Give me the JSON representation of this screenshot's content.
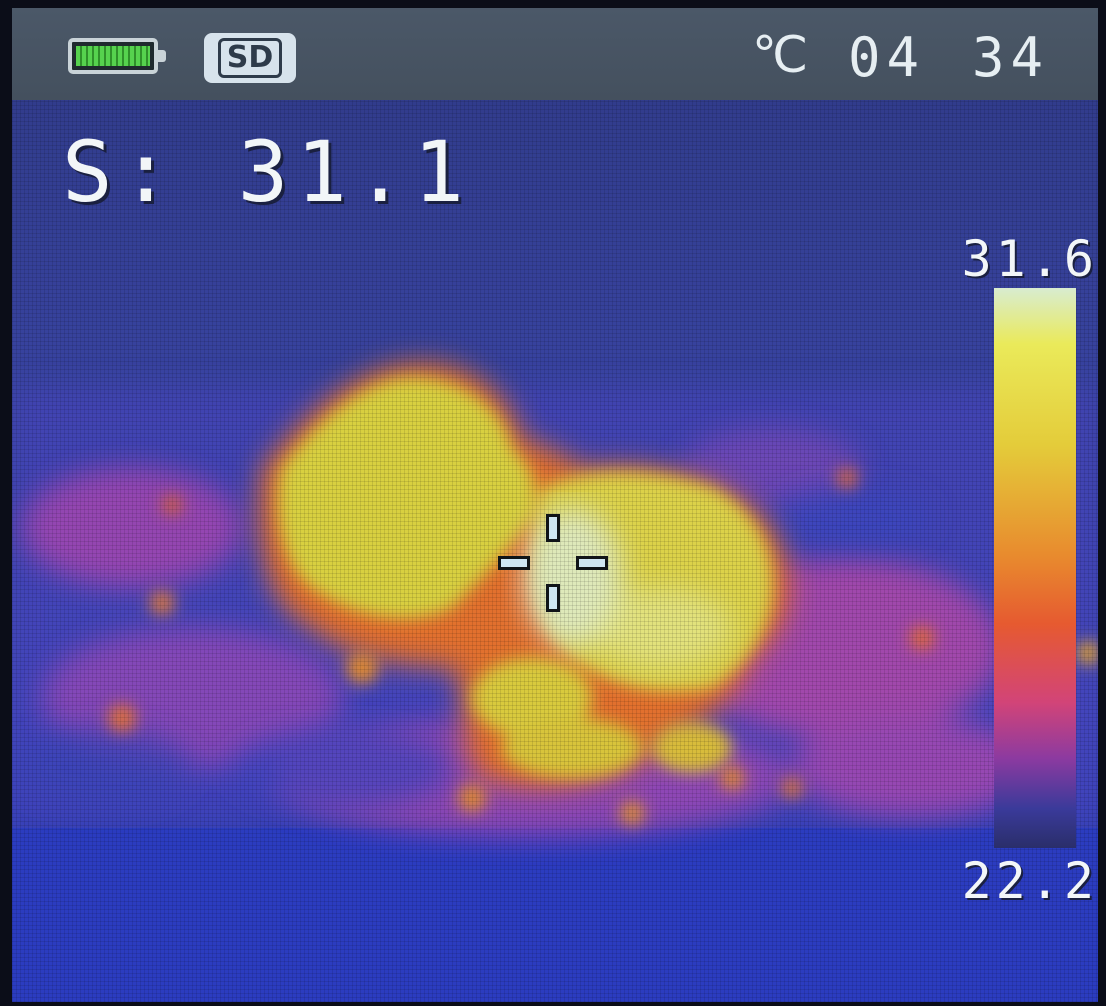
{
  "status_bar": {
    "battery_icon": "battery-full-icon",
    "sd_label": "SD",
    "unit": "℃",
    "clock_hours": "04",
    "clock_minutes": "34"
  },
  "spot": {
    "reading": "S: 31.1"
  },
  "scale": {
    "max": "31.6",
    "min": "22.2"
  },
  "palette": {
    "background": "#3a44a8",
    "hot": "#e4e060",
    "warm": "#e88a2e",
    "medium": "#c64aa0",
    "cool": "#4a4ec0"
  }
}
